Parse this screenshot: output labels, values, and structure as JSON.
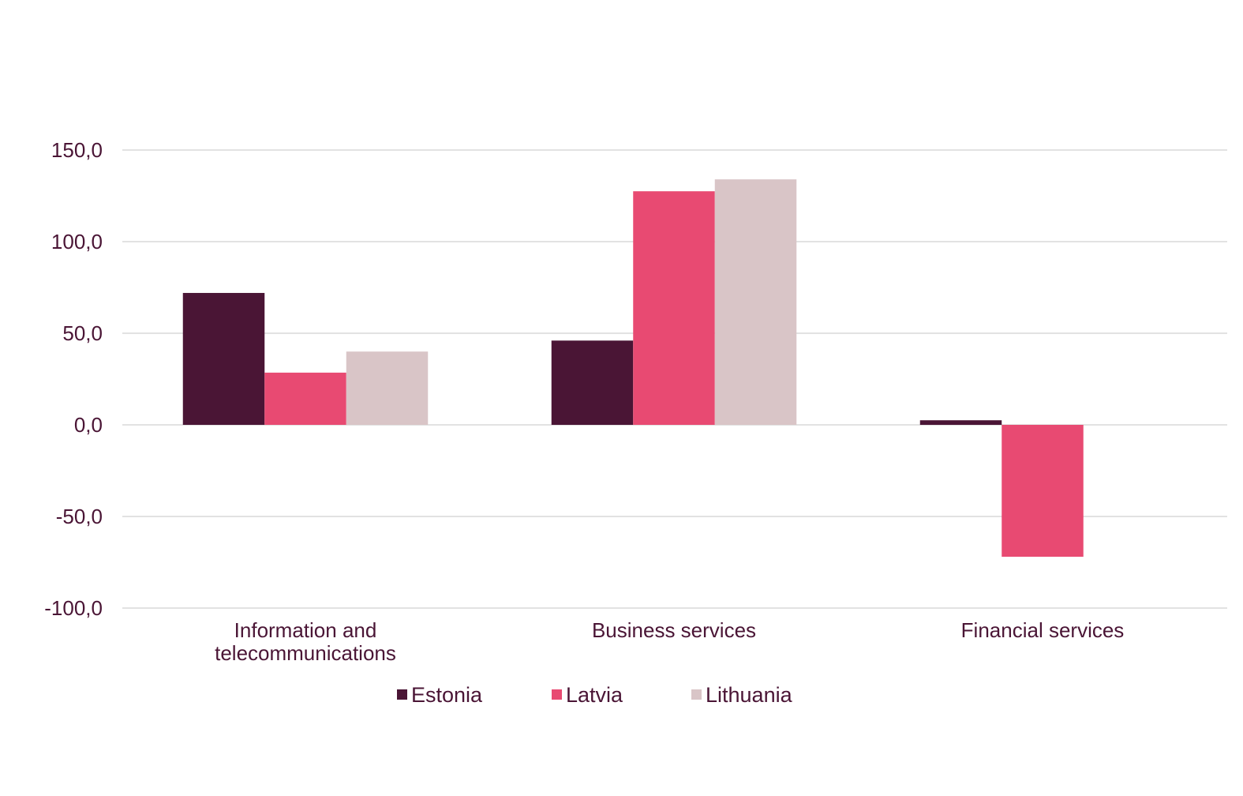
{
  "chart_data": {
    "type": "bar",
    "title": "",
    "xlabel": "",
    "ylabel": "",
    "categories": [
      [
        "Information and",
        "telecommunications"
      ],
      [
        "Business services"
      ],
      [
        "Financial services"
      ]
    ],
    "series": [
      {
        "name": "Estonia",
        "color": "#4a1535",
        "values": [
          72.0,
          46.0,
          2.5
        ]
      },
      {
        "name": "Latvia",
        "color": "#e84a72",
        "values": [
          28.5,
          127.5,
          -72.0
        ]
      },
      {
        "name": "Lithuania",
        "color": "#d9c5c7",
        "values": [
          40.0,
          134.0,
          0.0
        ]
      }
    ],
    "ylim": [
      -100,
      150
    ],
    "yticks": [
      150,
      100,
      50,
      0,
      -50,
      -100
    ],
    "ytick_labels": [
      "150,0",
      "100,0",
      "50,0",
      "0,0",
      "-50,0",
      "-100,0"
    ],
    "grid": true,
    "legend_position": "bottom"
  }
}
